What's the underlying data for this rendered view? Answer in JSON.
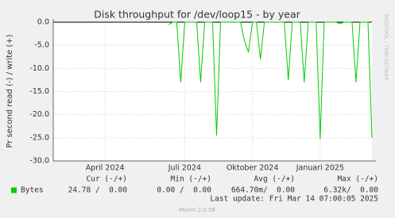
{
  "chart_data": {
    "type": "line",
    "title": "Disk throughput for /dev/loop15 - by year",
    "y_label": "Pr second read (-) / write (+)",
    "side_label": "RRDTOOL / TOBI OETIKER",
    "categories": [
      null,
      null,
      null,
      null,
      null,
      null,
      null,
      null,
      null,
      null,
      null,
      null,
      null,
      "April 2024",
      null,
      null,
      null,
      null,
      null,
      null,
      null,
      null,
      null,
      null,
      null,
      null,
      null,
      null,
      null,
      null,
      null,
      null,
      null,
      "Juli 2024",
      null,
      null,
      null,
      null,
      null,
      null,
      null,
      null,
      null,
      null,
      null,
      null,
      null,
      null,
      null,
      null,
      "Oktober 2024",
      null,
      null,
      null,
      null,
      null,
      null,
      null,
      null,
      null,
      null,
      null,
      null,
      null,
      null,
      null,
      null,
      "Januari 2025",
      null,
      null,
      null,
      null,
      null,
      null,
      null,
      null,
      null,
      null,
      null,
      null,
      null
    ],
    "series": [
      {
        "name": "Bytes",
        "color": "#00cc00",
        "values": [
          null,
          null,
          null,
          null,
          null,
          null,
          null,
          null,
          null,
          null,
          null,
          null,
          null,
          null,
          null,
          null,
          null,
          null,
          null,
          null,
          null,
          null,
          null,
          null,
          null,
          null,
          null,
          null,
          null,
          -0.5,
          0,
          0,
          -13,
          0,
          0,
          0,
          0,
          -13,
          0,
          0,
          0,
          -24.5,
          0,
          0,
          0,
          0,
          0,
          0,
          -4,
          -6.5,
          0,
          0,
          -8,
          0,
          0,
          0,
          0,
          0,
          0,
          -12.5,
          0,
          0,
          0,
          -13,
          0,
          0,
          0,
          -25.3,
          0,
          0,
          0,
          0,
          -0.3,
          0,
          0,
          0,
          -13,
          0,
          0,
          0,
          -25
        ],
        "stats": [
          "24.78 /  0.00",
          "0.00 /  0.00",
          "664.70m/  0.00",
          "6.32k/  0.00"
        ]
      }
    ],
    "stats_headers": [
      "Cur (-/+)",
      "Min (-/+)",
      "Avg (-/+)",
      "Max (-/+)"
    ],
    "ylim": [
      -30,
      0
    ],
    "yticks": [
      {
        "value": 0,
        "label": "0.0"
      },
      {
        "value": -5,
        "label": "-5.0"
      },
      {
        "value": -10,
        "label": "-10.0"
      },
      {
        "value": -15,
        "label": "-15.0"
      },
      {
        "value": -20,
        "label": "-20.0"
      },
      {
        "value": -25,
        "label": "-25.0"
      },
      {
        "value": -30,
        "label": "-30.0"
      }
    ],
    "grid": true,
    "last_update": "Last update: Fri Mar 14 07:00:05 2025",
    "footer": "Munin 2.0.56"
  }
}
